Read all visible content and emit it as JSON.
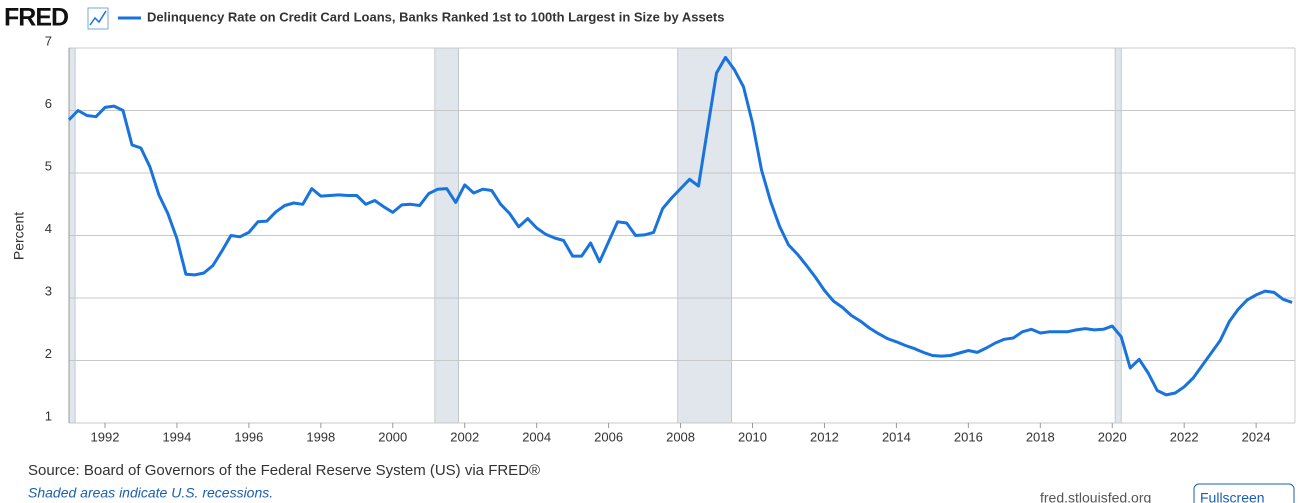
{
  "header": {
    "logo": "FRED"
  },
  "chart_data": {
    "type": "line",
    "title": "Delinquency Rate on Credit Card Loans, Banks Ranked 1st to 100th Largest in Size by Assets",
    "y_label": "Percent",
    "x": [
      1991,
      1991.25,
      1991.5,
      1991.75,
      1992,
      1992.25,
      1992.5,
      1992.75,
      1993,
      1993.25,
      1993.5,
      1993.75,
      1994,
      1994.25,
      1994.5,
      1994.75,
      1995,
      1995.25,
      1995.5,
      1995.75,
      1996,
      1996.25,
      1996.5,
      1996.75,
      1997,
      1997.25,
      1997.5,
      1997.75,
      1998,
      1998.25,
      1998.5,
      1998.75,
      1999,
      1999.25,
      1999.5,
      1999.75,
      2000,
      2000.25,
      2000.5,
      2000.75,
      2001,
      2001.25,
      2001.5,
      2001.75,
      2002,
      2002.25,
      2002.5,
      2002.75,
      2003,
      2003.25,
      2003.5,
      2003.75,
      2004,
      2004.25,
      2004.5,
      2004.75,
      2005,
      2005.25,
      2005.5,
      2005.75,
      2006,
      2006.25,
      2006.5,
      2006.75,
      2007,
      2007.25,
      2007.5,
      2007.75,
      2008,
      2008.25,
      2008.5,
      2008.75,
      2009,
      2009.25,
      2009.5,
      2009.75,
      2010,
      2010.25,
      2010.5,
      2010.75,
      2011,
      2011.25,
      2011.5,
      2011.75,
      2012,
      2012.25,
      2012.5,
      2012.75,
      2013,
      2013.25,
      2013.5,
      2013.75,
      2014,
      2014.25,
      2014.5,
      2014.75,
      2015,
      2015.25,
      2015.5,
      2015.75,
      2016,
      2016.25,
      2016.5,
      2016.75,
      2017,
      2017.25,
      2017.5,
      2017.75,
      2018,
      2018.25,
      2018.5,
      2018.75,
      2019,
      2019.25,
      2019.5,
      2019.75,
      2020,
      2020.25,
      2020.5,
      2020.75,
      2021,
      2021.25,
      2021.5,
      2021.75,
      2022,
      2022.25,
      2022.5,
      2022.75,
      2023,
      2023.25,
      2023.5,
      2023.75,
      2024,
      2024.25,
      2024.5,
      2024.75,
      2025
    ],
    "series": [
      {
        "name": "Delinquency Rate on Credit Card Loans, Banks Ranked 1st to 100th Largest in Size by Assets",
        "color": "#1873dc",
        "values": [
          5.85,
          6.0,
          5.92,
          5.9,
          6.05,
          6.07,
          6.0,
          5.45,
          5.4,
          5.1,
          4.65,
          4.35,
          3.95,
          3.38,
          3.37,
          3.4,
          3.52,
          3.75,
          4.0,
          3.98,
          4.05,
          4.22,
          4.23,
          4.38,
          4.48,
          4.52,
          4.5,
          4.75,
          4.63,
          4.64,
          4.65,
          4.64,
          4.64,
          4.5,
          4.56,
          4.46,
          4.37,
          4.49,
          4.5,
          4.48,
          4.67,
          4.74,
          4.75,
          4.53,
          4.81,
          4.68,
          4.74,
          4.72,
          4.5,
          4.35,
          4.14,
          4.27,
          4.12,
          4.02,
          3.96,
          3.92,
          3.67,
          3.67,
          3.88,
          3.58,
          3.9,
          4.22,
          4.2,
          4.0,
          4.01,
          4.05,
          4.43,
          4.6,
          4.75,
          4.9,
          4.79,
          5.7,
          6.6,
          6.85,
          6.65,
          6.38,
          5.8,
          5.05,
          4.55,
          4.15,
          3.85,
          3.7,
          3.52,
          3.33,
          3.12,
          2.95,
          2.85,
          2.72,
          2.63,
          2.52,
          2.43,
          2.35,
          2.3,
          2.24,
          2.19,
          2.13,
          2.08,
          2.07,
          2.08,
          2.12,
          2.16,
          2.13,
          2.2,
          2.28,
          2.34,
          2.36,
          2.46,
          2.5,
          2.44,
          2.46,
          2.46,
          2.46,
          2.49,
          2.51,
          2.49,
          2.5,
          2.55,
          2.38,
          1.88,
          2.02,
          1.8,
          1.52,
          1.45,
          1.48,
          1.58,
          1.72,
          1.92,
          2.12,
          2.32,
          2.62,
          2.82,
          2.97,
          3.05,
          3.11,
          3.09,
          2.98,
          2.93
        ]
      }
    ],
    "recessions": [
      [
        1990.5,
        1991.17
      ],
      [
        2001.17,
        2001.83
      ],
      [
        2007.92,
        2009.42
      ],
      [
        2020.08,
        2020.25
      ]
    ],
    "xlim": [
      1991,
      2025.08
    ],
    "xticks": [
      1992,
      1994,
      1996,
      1998,
      2000,
      2002,
      2004,
      2006,
      2008,
      2010,
      2012,
      2014,
      2016,
      2018,
      2020,
      2022,
      2024
    ],
    "ylim": [
      1,
      7
    ],
    "yticks": [
      1,
      2,
      3,
      4,
      5,
      6,
      7
    ],
    "grid": true
  },
  "footer": {
    "source": "Source: Board of Governors of the Federal Reserve System (US) via FRED®",
    "note": "Shaded areas indicate U.S. recessions.",
    "site": "fred.stlouisfed.org",
    "button": "Fullscreen"
  }
}
